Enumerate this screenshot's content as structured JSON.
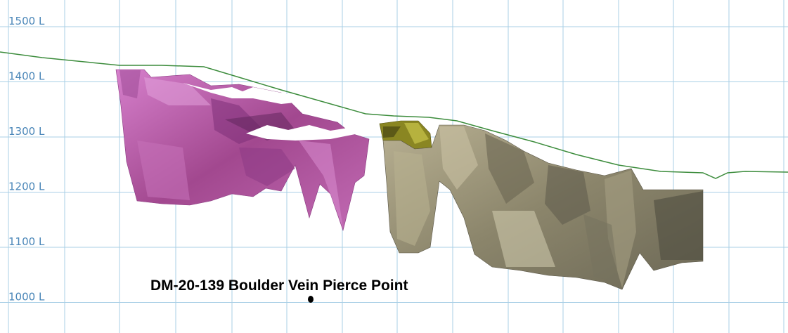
{
  "elevation_levels": [
    {
      "value": 1500,
      "label": "1500 L"
    },
    {
      "value": 1400,
      "label": "1400 L"
    },
    {
      "value": 1300,
      "label": "1300 L"
    },
    {
      "value": 1200,
      "label": "1200 L"
    },
    {
      "value": 1100,
      "label": "1100 L"
    },
    {
      "value": 1000,
      "label": "1000 L"
    }
  ],
  "annotation": {
    "label": "DM-20-139 Boulder Vein Pierce Point"
  },
  "colors": {
    "grid": "#a9cfe6",
    "elevation_label": "#4a86b8",
    "topography": "#3c8c3c",
    "vein_magenta": "#b05aa8",
    "vein_yellow": "#7e7a20",
    "vein_grey": "#9c9578",
    "pierce_point": "#000000"
  }
}
